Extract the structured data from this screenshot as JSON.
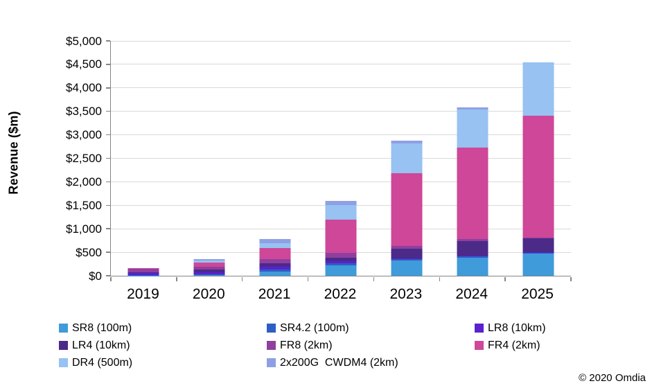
{
  "chart_data": {
    "type": "bar",
    "variant": "stacked-column",
    "title": "",
    "xlabel": "",
    "ylabel": "Revenue ($m)",
    "ylim": [
      0,
      5000
    ],
    "ytick_step": 500,
    "ytick_labels": [
      "$0",
      "$500",
      "$1,000",
      "$1,500",
      "$2,000",
      "$2,500",
      "$3,000",
      "$3,500",
      "$4,000",
      "$4,500",
      "$5,000"
    ],
    "grid": true,
    "legend_position": "bottom",
    "categories": [
      "2019",
      "2020",
      "2021",
      "2022",
      "2023",
      "2024",
      "2025"
    ],
    "series": [
      {
        "name": "SR8 (100m)",
        "color": "#3F9BD9",
        "values": [
          5,
          25,
          88,
          225,
          320,
          390,
          465
        ]
      },
      {
        "name": "SR4.2 (100m)",
        "color": "#2E5EC4",
        "values": [
          10,
          12,
          45,
          45,
          30,
          25,
          25
        ]
      },
      {
        "name": "LR8 (10km)",
        "color": "#5A21CE",
        "values": [
          50,
          40,
          58,
          45,
          25,
          15,
          15
        ]
      },
      {
        "name": "LR4 (10km)",
        "color": "#4B2A88",
        "values": [
          15,
          58,
          74,
          75,
          205,
          310,
          285
        ]
      },
      {
        "name": "FR8 (2km)",
        "color": "#903F9E",
        "values": [
          70,
          60,
          96,
          100,
          60,
          40,
          25
        ]
      },
      {
        "name": "FR4 (2km)",
        "color": "#CE4798",
        "values": [
          8,
          88,
          222,
          710,
          1545,
          1945,
          2595
        ]
      },
      {
        "name": "DR4 (500m)",
        "color": "#97C2F1",
        "values": [
          0,
          40,
          108,
          305,
          630,
          810,
          1135
        ]
      },
      {
        "name": "2x200G  CWDM4 (2km)",
        "color": "#8F9FE4",
        "values": [
          0,
          32,
          90,
          90,
          60,
          50,
          0
        ]
      }
    ],
    "totals": [
      158,
      355,
      781,
      1595,
      2875,
      3585,
      4545
    ]
  },
  "footer": {
    "credit": "© 2020 Omdia"
  }
}
